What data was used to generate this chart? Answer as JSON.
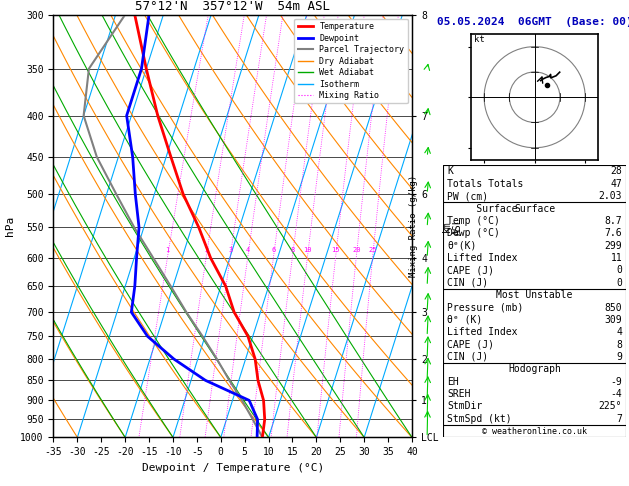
{
  "title_left": "57°12'N  357°12'W  54m ASL",
  "title_right": "05.05.2024  06GMT  (Base: 00)",
  "xlabel": "Dewpoint / Temperature (°C)",
  "pressure_levels": [
    300,
    350,
    400,
    450,
    500,
    550,
    600,
    650,
    700,
    750,
    800,
    850,
    900,
    950,
    1000
  ],
  "temperature_profile": {
    "pressure": [
      1000,
      950,
      900,
      850,
      800,
      750,
      700,
      650,
      600,
      550,
      500,
      450,
      400,
      350,
      300
    ],
    "temp": [
      8.7,
      8.0,
      6.5,
      4.0,
      2.0,
      -1.0,
      -5.5,
      -9.0,
      -14.0,
      -18.5,
      -24.0,
      -29.0,
      -34.5,
      -40.0,
      -46.0
    ]
  },
  "dewpoint_profile": {
    "pressure": [
      1000,
      950,
      900,
      850,
      800,
      750,
      700,
      650,
      600,
      550,
      500,
      450,
      400,
      350,
      300
    ],
    "temp": [
      7.6,
      6.5,
      3.5,
      -7.0,
      -15.0,
      -22.0,
      -27.0,
      -28.0,
      -29.5,
      -31.0,
      -34.0,
      -37.0,
      -41.0,
      -41.0,
      -43.0
    ]
  },
  "parcel_profile": {
    "pressure": [
      1000,
      950,
      900,
      850,
      800,
      750,
      700,
      650,
      600,
      550,
      500,
      450,
      400,
      350,
      300
    ],
    "temp": [
      8.7,
      5.5,
      2.0,
      -2.0,
      -6.0,
      -10.5,
      -15.5,
      -20.5,
      -26.0,
      -32.0,
      -38.0,
      -44.5,
      -50.0,
      -52.0,
      -48.0
    ]
  },
  "km_ticks": {
    "300": "8",
    "400": "7",
    "500": "6",
    "600": "4",
    "700": "3",
    "800": "2",
    "900": "1",
    "1000": "LCL"
  },
  "skew_amount": 28,
  "xmin": -35,
  "xmax": 40,
  "dry_adiabat_thetas": [
    -40,
    -30,
    -20,
    -10,
    0,
    10,
    20,
    30,
    40,
    50,
    60,
    70,
    80,
    90,
    100,
    110,
    120
  ],
  "wet_adiabat_temps": [
    -20,
    -10,
    0,
    10,
    20,
    30,
    40
  ],
  "mixing_ratios": [
    1,
    2,
    3,
    4,
    6,
    8,
    10,
    15,
    20,
    25
  ],
  "isotherm_temps": [
    -50,
    -40,
    -30,
    -20,
    -10,
    0,
    10,
    20,
    30,
    40,
    50
  ],
  "bg_color": "#ffffff",
  "temp_color": "#ff0000",
  "dewp_color": "#0000ff",
  "parcel_color": "#808080",
  "dry_adiabat_color": "#ff8800",
  "wet_adiabat_color": "#00aa00",
  "isotherm_color": "#00aaff",
  "mixing_ratio_color": "#ff00ff",
  "indices_K": 28,
  "indices_TT": 47,
  "indices_PW": 2.03,
  "surf_temp": 8.7,
  "surf_dewp": 7.6,
  "surf_theta_e": 299,
  "surf_li": 11,
  "surf_cape": 0,
  "surf_cin": 0,
  "mu_pres": 850,
  "mu_theta_e": 309,
  "mu_li": 4,
  "mu_cape": 8,
  "mu_cin": 9,
  "hodo_EH": -9,
  "hodo_SREH": -4,
  "hodo_StmDir": "225°",
  "hodo_StmSpd": 7,
  "copyright": "© weatheronline.co.uk",
  "wind_pressures": [
    1000,
    950,
    900,
    850,
    800,
    750,
    700,
    650,
    600,
    550,
    500,
    450,
    400,
    350,
    300
  ],
  "wind_dirs": [
    200,
    205,
    210,
    215,
    215,
    220,
    225,
    225,
    230,
    235,
    240,
    245,
    250,
    255,
    260
  ],
  "wind_speeds": [
    7,
    8,
    9,
    10,
    11,
    10,
    12,
    14,
    15,
    16,
    15,
    16,
    18,
    20,
    22
  ]
}
